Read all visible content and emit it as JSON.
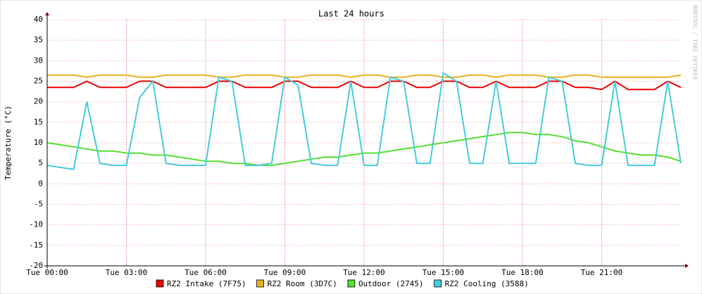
{
  "chart_data": {
    "type": "line",
    "title": "Last 24 hours",
    "y_label": "Temperature (°C)",
    "watermark": "RRDTOOL / TOBI OETIKER",
    "x": [
      0,
      0.5,
      1,
      1.5,
      2,
      2.5,
      3,
      3.5,
      4,
      4.5,
      5,
      5.5,
      6,
      6.5,
      7,
      7.5,
      8,
      8.5,
      9,
      9.5,
      10,
      10.5,
      11,
      11.5,
      12,
      12.5,
      13,
      13.5,
      14,
      14.5,
      15,
      15.5,
      16,
      16.5,
      17,
      17.5,
      18,
      18.5,
      19,
      19.5,
      20,
      20.5,
      21,
      21.5,
      22,
      22.5,
      23,
      23.5,
      24
    ],
    "xlim": [
      0,
      24
    ],
    "xticks": [
      {
        "value": 0,
        "label": "Tue 00:00"
      },
      {
        "value": 3,
        "label": "Tue 03:00"
      },
      {
        "value": 6,
        "label": "Tue 06:00"
      },
      {
        "value": 9,
        "label": "Tue 09:00"
      },
      {
        "value": 12,
        "label": "Tue 12:00"
      },
      {
        "value": 15,
        "label": "Tue 15:00"
      },
      {
        "value": 18,
        "label": "Tue 18:00"
      },
      {
        "value": 21,
        "label": "Tue 21:00"
      }
    ],
    "ylim": [
      -20,
      40
    ],
    "yticks": [
      -20,
      -15,
      -10,
      -5,
      0,
      5,
      10,
      15,
      20,
      25,
      30,
      35,
      40
    ],
    "grid": true,
    "series": [
      {
        "name": "RZ2 Intake (7F75)",
        "color": "#ee0000",
        "values": [
          23.5,
          23.5,
          23.5,
          25,
          23.5,
          23.5,
          23.5,
          25,
          25,
          23.5,
          23.5,
          23.5,
          23.5,
          25,
          25,
          23.5,
          23.5,
          23.5,
          25,
          25,
          23.5,
          23.5,
          23.5,
          25,
          23.5,
          23.5,
          25,
          25,
          23.5,
          23.5,
          25,
          25,
          23.5,
          23.5,
          25,
          23.5,
          23.5,
          23.5,
          25,
          25,
          23.5,
          23.5,
          23,
          25,
          23,
          23,
          23,
          25,
          23.5
        ]
      },
      {
        "name": "RZ2 Room (3D7C)",
        "color": "#e8b020",
        "values": [
          26.5,
          26.5,
          26.5,
          26,
          26.5,
          26.5,
          26.5,
          26,
          26,
          26.5,
          26.5,
          26.5,
          26.5,
          26,
          26,
          26.5,
          26.5,
          26.5,
          26,
          26,
          26.5,
          26.5,
          26.5,
          26,
          26.5,
          26.5,
          26,
          26,
          26.5,
          26.5,
          26,
          26,
          26.5,
          26.5,
          26,
          26.5,
          26.5,
          26.5,
          26,
          26,
          26.5,
          26.5,
          26,
          26,
          26,
          26,
          26,
          26,
          26.5
        ]
      },
      {
        "name": "Outdoor (2745)",
        "color": "#55dd33",
        "values": [
          10,
          9.5,
          9,
          8.5,
          8,
          8,
          7.5,
          7.5,
          7,
          7,
          6.5,
          6,
          5.5,
          5.5,
          5,
          5,
          4.5,
          4.5,
          5,
          5.5,
          6,
          6.5,
          6.5,
          7,
          7.5,
          7.5,
          8,
          8.5,
          9,
          9.5,
          10,
          10.5,
          11,
          11.5,
          12,
          12.5,
          12.5,
          12,
          12,
          11.5,
          10.5,
          10,
          9,
          8,
          7.5,
          7,
          7,
          6.5,
          5.5
        ]
      },
      {
        "name": "RZ2 Cooling (3588)",
        "color": "#44ccdd",
        "values": [
          4.5,
          4,
          3.5,
          20,
          5,
          4.5,
          4.5,
          21,
          25,
          5,
          4.5,
          4.5,
          4.5,
          26,
          25,
          4.5,
          4.5,
          5,
          26,
          24,
          5,
          4.5,
          4.5,
          25,
          4.5,
          4.5,
          26,
          25,
          5,
          5,
          27,
          25,
          5,
          5,
          25,
          5,
          5,
          5,
          26,
          25,
          5,
          4.5,
          4.5,
          25,
          4.5,
          4.5,
          4.5,
          25,
          5
        ]
      }
    ]
  }
}
